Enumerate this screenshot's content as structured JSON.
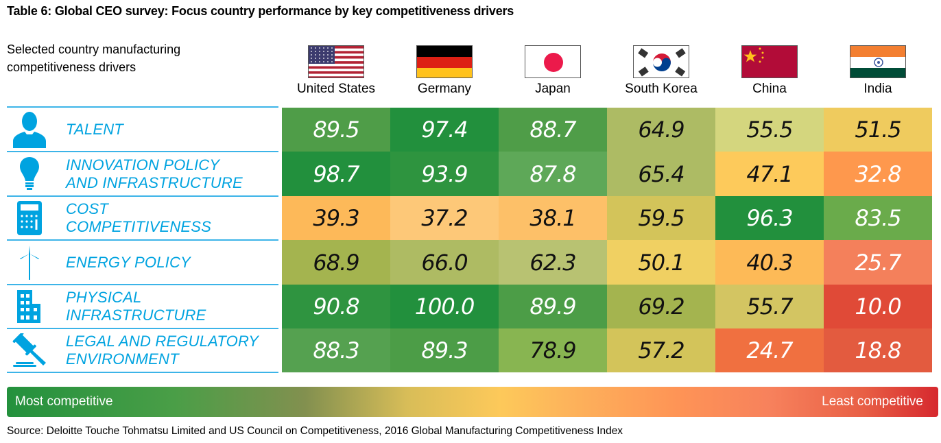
{
  "title": "Table 6: Global CEO survey: Focus country performance by key competitiveness drivers",
  "subtitle": "Selected country manufacturing competitiveness drivers",
  "countries": [
    {
      "name": "United States",
      "flag": "us-flag-icon"
    },
    {
      "name": "Germany",
      "flag": "germany-flag-icon"
    },
    {
      "name": "Japan",
      "flag": "japan-flag-icon"
    },
    {
      "name": "South Korea",
      "flag": "south-korea-flag-icon"
    },
    {
      "name": "China",
      "flag": "china-flag-icon"
    },
    {
      "name": "India",
      "flag": "india-flag-icon"
    }
  ],
  "drivers": [
    {
      "label_lines": [
        "TALENT"
      ],
      "icon": "person-icon"
    },
    {
      "label_lines": [
        "INNOVATION POLICY",
        "AND INFRASTRUCTURE"
      ],
      "icon": "lightbulb-icon"
    },
    {
      "label_lines": [
        "COST",
        "COMPETITIVENESS"
      ],
      "icon": "calculator-icon"
    },
    {
      "label_lines": [
        "ENERGY POLICY"
      ],
      "icon": "wind-turbine-icon"
    },
    {
      "label_lines": [
        "PHYSICAL",
        "INFRASTRUCTURE"
      ],
      "icon": "building-icon"
    },
    {
      "label_lines": [
        "LEGAL AND REGULATORY",
        "ENVIRONMENT"
      ],
      "icon": "gavel-icon"
    }
  ],
  "colors": {
    "label_blue": "#00a3e0",
    "most_competitive": "#23913d",
    "least_competitive": "#d6282e"
  },
  "legend": {
    "most": "Most competitive",
    "least": "Least competitive"
  },
  "source": "Source: Deloitte Touche Tohmatsu Limited and US Council on Competitiveness, 2016 Global Manufacturing Competitiveness Index",
  "chart_data": {
    "type": "heatmap",
    "title": "Table 6: Global CEO survey: Focus country performance by key competitiveness drivers",
    "x": [
      "United States",
      "Germany",
      "Japan",
      "South Korea",
      "China",
      "India"
    ],
    "y": [
      "TALENT",
      "INNOVATION POLICY AND INFRASTRUCTURE",
      "COST COMPETITIVENESS",
      "ENERGY POLICY",
      "PHYSICAL INFRASTRUCTURE",
      "LEGAL AND REGULATORY ENVIRONMENT"
    ],
    "values": [
      [
        "89.5",
        "97.4",
        "88.7",
        "64.9",
        "55.5",
        "51.5"
      ],
      [
        "98.7",
        "93.9",
        "87.8",
        "65.4",
        "47.1",
        "32.8"
      ],
      [
        "39.3",
        "37.2",
        "38.1",
        "59.5",
        "96.3",
        "83.5"
      ],
      [
        "68.9",
        "66.0",
        "62.3",
        "50.1",
        "40.3",
        "25.7"
      ],
      [
        "90.8",
        "100.0",
        "89.9",
        "69.2",
        "55.7",
        "10.0"
      ],
      [
        "88.3",
        "89.3",
        "78.9",
        "57.2",
        "24.7",
        "18.8"
      ]
    ],
    "cell_colors": [
      [
        "#4f9d48",
        "#22903d",
        "#4f9d48",
        "#adbb64",
        "#d4d67e",
        "#efcb5e"
      ],
      [
        "#22903d",
        "#2e943f",
        "#5ea858",
        "#adbb64",
        "#fdca5b",
        "#fe984d"
      ],
      [
        "#fdb959",
        "#fdc878",
        "#fdc068",
        "#d3c45a",
        "#22903d",
        "#6aab4b"
      ],
      [
        "#a4b44f",
        "#aebb63",
        "#b8c272",
        "#f0d062",
        "#fdba57",
        "#f4805b"
      ],
      [
        "#2f9440",
        "#22903d",
        "#4c9d47",
        "#a4b44f",
        "#d3c562",
        "#e04a37"
      ],
      [
        "#55a150",
        "#4c9d47",
        "#88b551",
        "#d3c45a",
        "#f07040",
        "#e35b3f"
      ]
    ],
    "legend": [
      "Most competitive",
      "Least competitive"
    ],
    "value_range": [
      0,
      100
    ]
  }
}
